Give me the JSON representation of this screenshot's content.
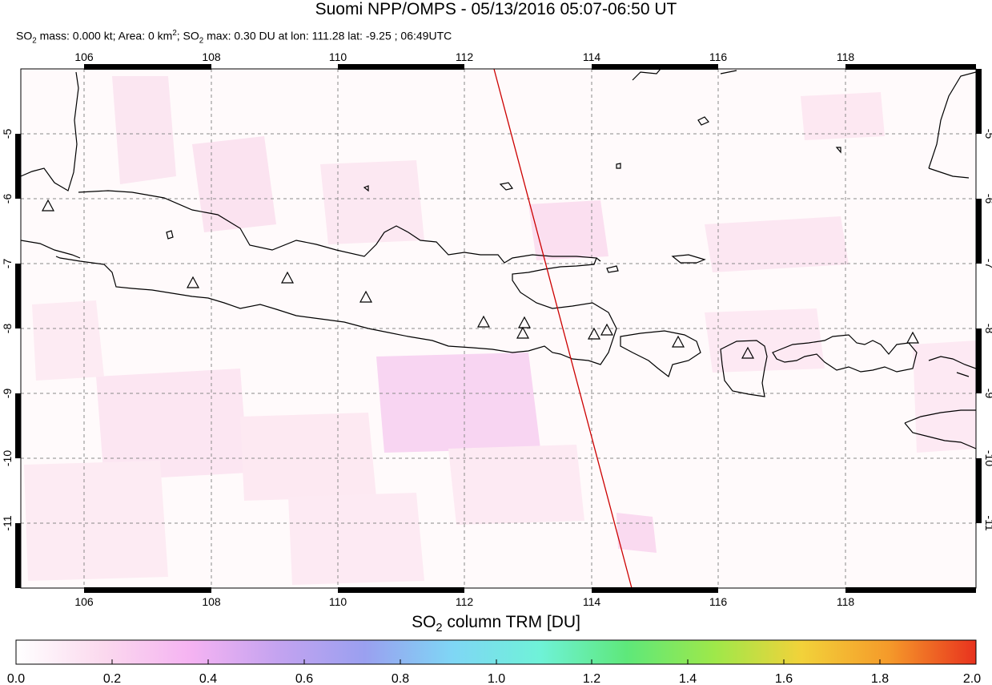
{
  "header": {
    "title": "Suomi NPP/OMPS - 05/13/2016 05:07-06:50 UT",
    "subtitle": {
      "p1": "SO",
      "p1_sub": "2",
      "p2": " mass: 0.000 kt; Area: 0 km",
      "p2_sup": "2",
      "p3": "; SO",
      "p3_sub": "2",
      "p4": " max: 0.30 DU at lon: 111.28 lat: -9.25 ; 06:49UTC"
    }
  },
  "map": {
    "lon_range": [
      105,
      120
    ],
    "lat_range": [
      -12,
      -4
    ],
    "lon_ticks": [
      "106",
      "108",
      "110",
      "112",
      "114",
      "116",
      "118"
    ],
    "lat_ticks": [
      "-5",
      "-6",
      "-7",
      "-8",
      "-9",
      "-10",
      "-11"
    ],
    "grid": true,
    "orbit_track_color": "#cc0000",
    "volcano_marker": "triangle"
  },
  "colorbar": {
    "title_main": "SO",
    "title_sub": "2",
    "title_rest": " column TRM [DU]",
    "ticks": [
      "0.0",
      "0.2",
      "0.4",
      "0.6",
      "0.8",
      "1.0",
      "1.2",
      "1.4",
      "1.6",
      "1.8",
      "2.0"
    ],
    "colors": [
      "#ffffff",
      "#fbd9ee",
      "#f5b3f2",
      "#c4a3f0",
      "#9aa0f0",
      "#7fd6f5",
      "#6ff2d8",
      "#5ee87a",
      "#9ee84a",
      "#f2d23a",
      "#f59a2a",
      "#e8321e"
    ]
  }
}
